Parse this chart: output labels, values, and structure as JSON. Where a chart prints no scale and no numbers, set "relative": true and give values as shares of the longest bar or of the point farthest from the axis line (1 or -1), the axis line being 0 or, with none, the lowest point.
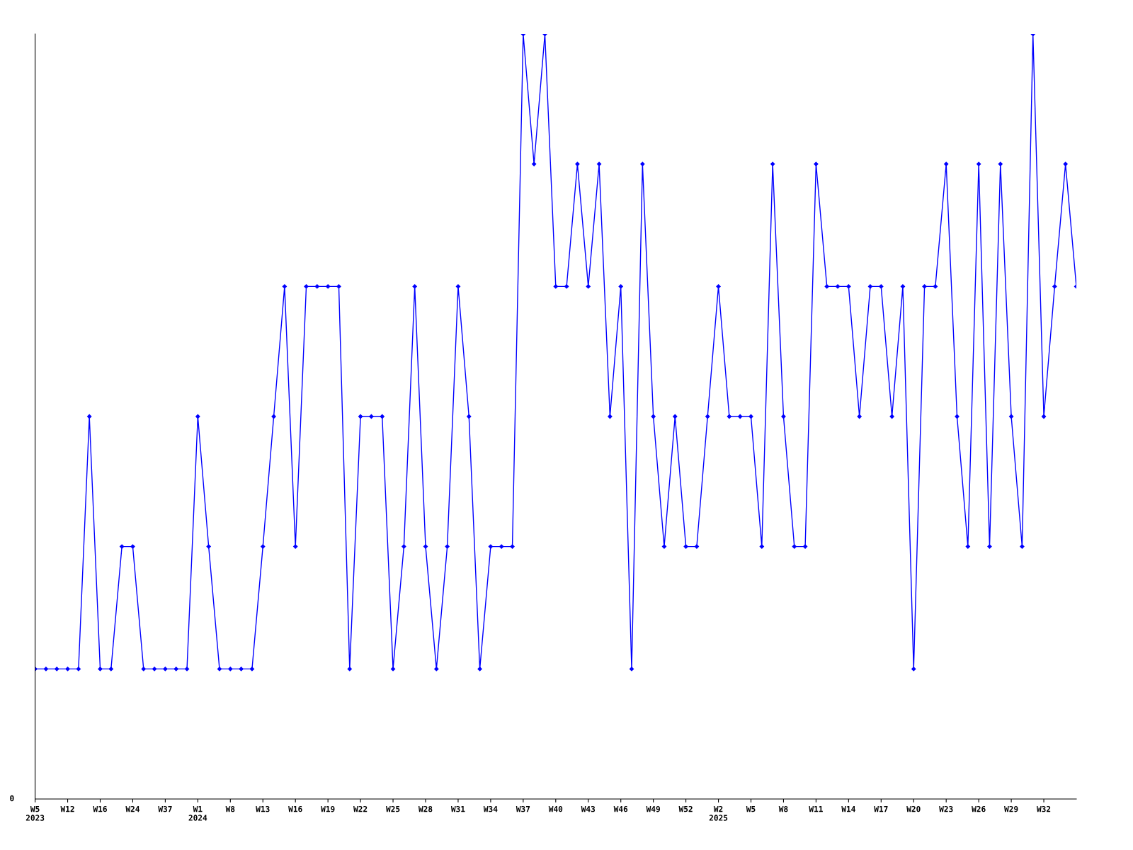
{
  "chart_data": {
    "type": "line",
    "relative": true,
    "marker": "diamond",
    "line_style": "solid",
    "grid": false,
    "annotations": [
      "0"
    ],
    "categories": [
      "W5\n2023",
      null,
      null,
      "W12",
      null,
      null,
      "W16",
      null,
      null,
      "W24",
      null,
      null,
      "W37",
      null,
      null,
      "W1\n2024",
      null,
      null,
      "W8",
      null,
      null,
      "W13",
      null,
      null,
      "W16",
      null,
      null,
      "W19",
      null,
      null,
      "W22",
      null,
      null,
      "W25",
      null,
      null,
      "W28",
      null,
      null,
      "W31",
      null,
      null,
      "W34",
      null,
      null,
      "W37",
      null,
      null,
      "W40",
      null,
      null,
      "W43",
      null,
      null,
      "W46",
      null,
      null,
      "W49",
      null,
      null,
      "W52",
      null,
      null,
      "W2\n2025",
      null,
      null,
      "W5",
      null,
      null,
      "W8",
      null,
      null,
      "W11",
      null,
      null,
      "W14",
      null,
      null,
      "W17",
      null,
      null,
      "W20",
      null,
      null,
      "W23",
      null,
      null,
      "W26",
      null,
      null,
      "W29",
      null,
      null,
      "W32",
      null,
      null,
      null
    ],
    "series": [
      {
        "color": "#0000ff",
        "values": [
          0.17,
          0.17,
          0.17,
          0.17,
          0.17,
          0.5,
          0.17,
          0.17,
          0.33,
          0.33,
          0.17,
          0.17,
          0.17,
          0.17,
          0.17,
          0.5,
          0.33,
          0.17,
          0.17,
          0.17,
          0.17,
          0.33,
          0.5,
          0.67,
          0.33,
          0.67,
          0.67,
          0.67,
          0.67,
          0.17,
          0.5,
          0.5,
          0.5,
          0.17,
          0.33,
          0.67,
          0.33,
          0.17,
          0.33,
          0.67,
          0.5,
          0.17,
          0.33,
          0.33,
          0.33,
          1,
          0.83,
          1,
          0.67,
          0.67,
          0.83,
          0.67,
          0.83,
          0.5,
          0.67,
          0.17,
          0.83,
          0.5,
          0.33,
          0.5,
          0.33,
          0.33,
          0.5,
          0.67,
          0.5,
          0.5,
          0.5,
          0.33,
          0.83,
          0.5,
          0.33,
          0.33,
          0.83,
          0.67,
          0.67,
          0.67,
          0.5,
          0.67,
          0.67,
          0.5,
          0.67,
          0.17,
          0.67,
          0.67,
          0.83,
          0.5,
          0.33,
          0.83,
          0.33,
          0.83,
          0.5,
          0.33,
          1,
          0.5,
          0.67,
          0.83,
          0.67
        ]
      }
    ]
  }
}
